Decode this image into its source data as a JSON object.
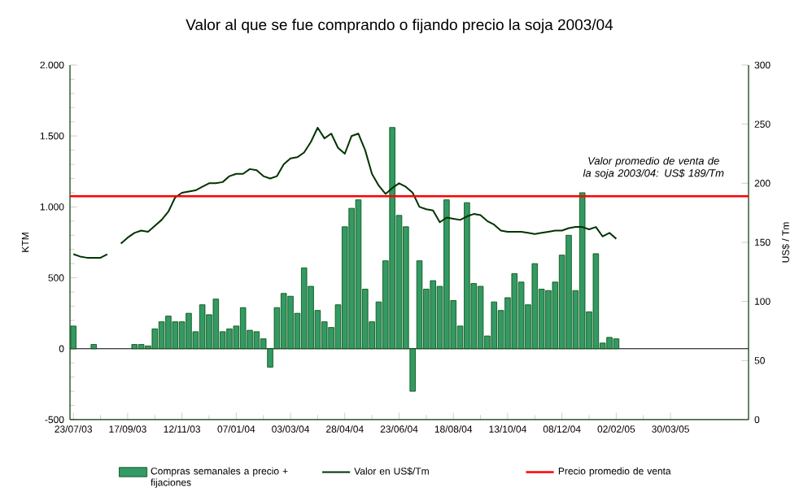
{
  "chart_data": {
    "type": "bar",
    "title": "Valor al que se fue comprando o fijando precio la soja 2003/04",
    "categories": [
      "23/07/03",
      null,
      null,
      null,
      null,
      null,
      null,
      null,
      "17/09/03",
      null,
      null,
      null,
      null,
      null,
      null,
      null,
      "12/11/03",
      null,
      null,
      null,
      null,
      null,
      null,
      null,
      "07/01/04",
      null,
      null,
      null,
      null,
      null,
      null,
      null,
      "03/03/04",
      null,
      null,
      null,
      null,
      null,
      null,
      null,
      "28/04/04",
      null,
      null,
      null,
      null,
      null,
      null,
      null,
      "23/06/04",
      null,
      null,
      null,
      null,
      null,
      null,
      null,
      "18/08/04",
      null,
      null,
      null,
      null,
      null,
      null,
      null,
      "13/10/04",
      null,
      null,
      null,
      null,
      null,
      null,
      null,
      "08/12/04",
      null,
      null,
      null,
      null,
      null,
      null,
      null,
      "02/02/05",
      null,
      null,
      null,
      null,
      null,
      null,
      null,
      "30/03/05",
      null,
      null,
      null,
      null,
      null,
      null,
      null,
      null,
      null,
      null,
      null
    ],
    "series": [
      {
        "name": "Compras semanales a precio + fijaciones",
        "color": "#339966",
        "values": [
          160,
          null,
          null,
          30,
          null,
          null,
          null,
          null,
          null,
          30,
          30,
          20,
          140,
          190,
          230,
          190,
          190,
          250,
          120,
          310,
          240,
          350,
          120,
          140,
          160,
          290,
          130,
          120,
          70,
          -130,
          290,
          390,
          370,
          250,
          570,
          440,
          270,
          190,
          150,
          310,
          860,
          990,
          1050,
          420,
          190,
          330,
          620,
          1560,
          940,
          860,
          -300,
          620,
          420,
          480,
          440,
          1050,
          340,
          160,
          1030,
          460,
          440,
          90,
          330,
          270,
          360,
          530,
          470,
          310,
          600,
          420,
          410,
          470,
          660,
          800,
          410,
          1100,
          260,
          670,
          40,
          80,
          70,
          null,
          null,
          null,
          null,
          null,
          null,
          null,
          null,
          null,
          null,
          null,
          null,
          null,
          null,
          null,
          null,
          null,
          null,
          null
        ]
      },
      {
        "name": "Valor en US$/Tm",
        "type": "line",
        "axis": "y2",
        "color": "#003300",
        "values": [
          140,
          138,
          137,
          137,
          137,
          140,
          null,
          149,
          154,
          158,
          160,
          159,
          164,
          169,
          176,
          188,
          192,
          193,
          194,
          197,
          200,
          200,
          201,
          206,
          208,
          208,
          212,
          211,
          206,
          204,
          206,
          216,
          221,
          222,
          226,
          235,
          247,
          238,
          242,
          230,
          225,
          240,
          242,
          228,
          208,
          198,
          191,
          196,
          200,
          197,
          192,
          180,
          178,
          177,
          167,
          171,
          170,
          169,
          172,
          174,
          173,
          168,
          165,
          160,
          159,
          159,
          159,
          158,
          157,
          158,
          159,
          160,
          160,
          162,
          163,
          163,
          161,
          163,
          155,
          158,
          153,
          null,
          null,
          null,
          null,
          null,
          null,
          null,
          null,
          null,
          null,
          null,
          null,
          null,
          null,
          null,
          null,
          null,
          null,
          null
        ]
      }
    ],
    "ylabel": "KTM",
    "y2label": "US$ / Tm",
    "ylim": [
      -500,
      2000
    ],
    "yticks": [
      {
        "value": -500,
        "label": "-500"
      },
      0,
      500,
      {
        "value": 1000,
        "label": "1.000"
      },
      {
        "value": 1500,
        "label": "1.500"
      },
      {
        "value": 2000,
        "label": "2.000"
      }
    ],
    "y2lim": [
      0,
      300
    ],
    "y2ticks": [
      0,
      50,
      100,
      150,
      200,
      250,
      300
    ],
    "ref_lines": [
      {
        "axis": "y2",
        "value": 189,
        "label": "Precio promedio de venta",
        "color": "#ff0000"
      }
    ],
    "annotations": [
      "Valor promedio de venta de la soja 2003/04: US$ 189/Tm"
    ],
    "legend": "bottom"
  }
}
